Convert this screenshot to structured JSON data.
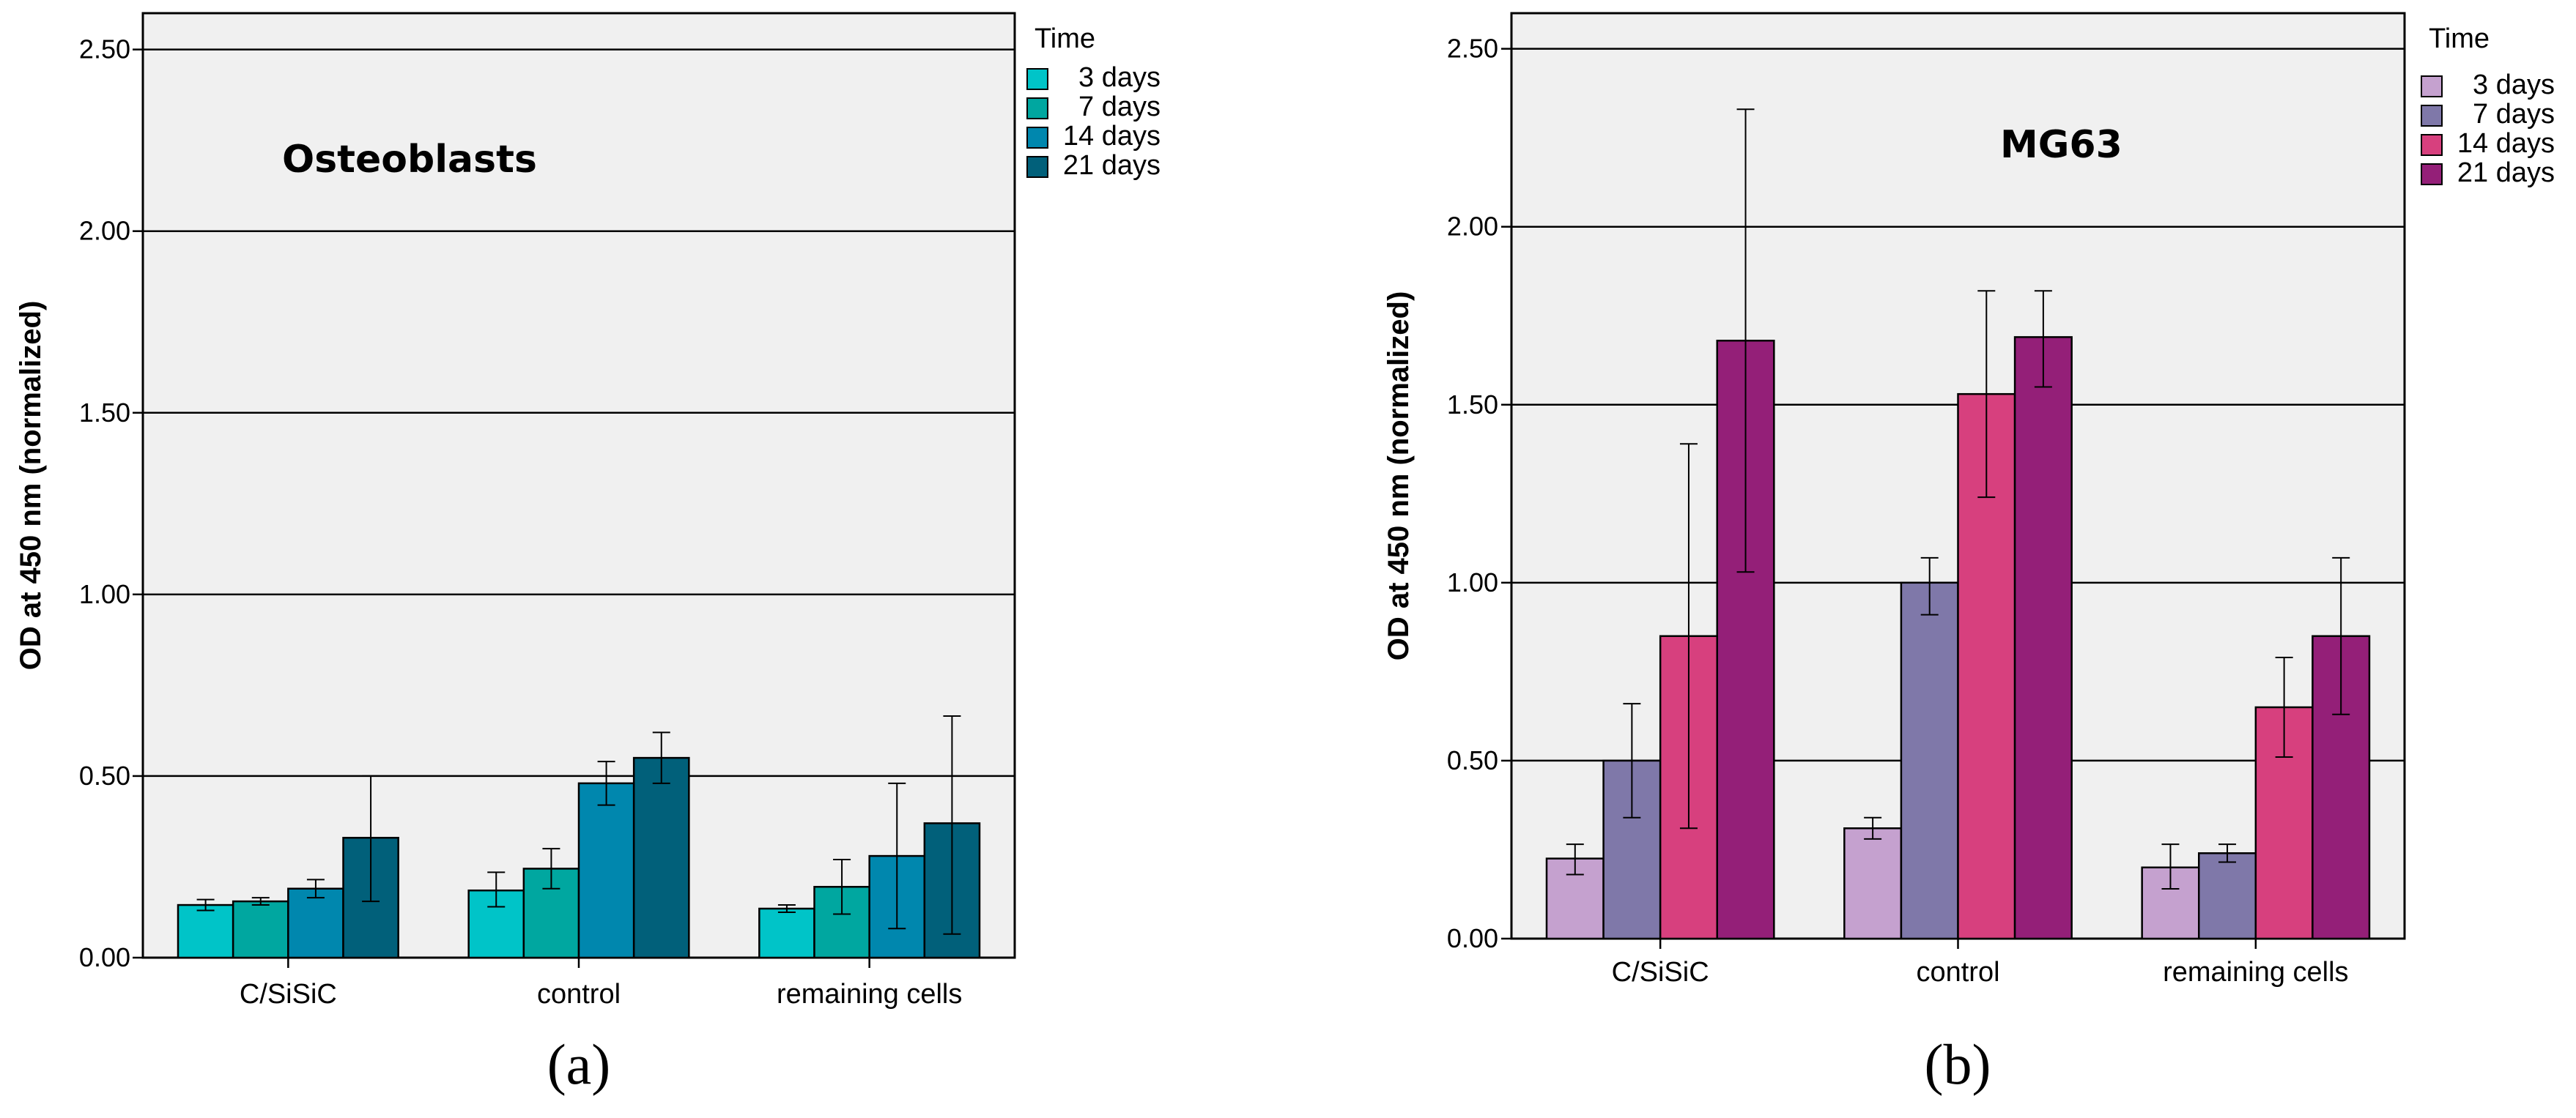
{
  "chart_data": [
    {
      "type": "bar",
      "title": "Osteoblasts",
      "subfigure_label": "(a)",
      "xlabel": "",
      "ylabel": "OD at 450 nm (normalized)",
      "ylim": [
        0,
        2.6
      ],
      "yticks": [
        0.0,
        0.5,
        1.0,
        1.5,
        2.0,
        2.5
      ],
      "ytick_labels": [
        "0.00",
        "0.50",
        "1.00",
        "1.50",
        "2.00",
        "2.50"
      ],
      "grid": true,
      "legend": {
        "title": "Time",
        "position": "right-outside-top"
      },
      "categories": [
        "C/SiSiC",
        "control",
        "remaining cells"
      ],
      "series": [
        {
          "name": "3 days",
          "color": "#00C4C8",
          "values": [
            0.145,
            0.185,
            0.135
          ],
          "err_low": [
            0.13,
            0.14,
            0.125
          ],
          "err_high": [
            0.16,
            0.235,
            0.145
          ]
        },
        {
          "name": "7 days",
          "color": "#00A7A0",
          "values": [
            0.155,
            0.245,
            0.195
          ],
          "err_low": [
            0.145,
            0.19,
            0.12
          ],
          "err_high": [
            0.165,
            0.3,
            0.27
          ]
        },
        {
          "name": "14 days",
          "color": "#0087AE",
          "values": [
            0.19,
            0.48,
            0.28
          ],
          "err_low": [
            0.165,
            0.42,
            0.08
          ],
          "err_high": [
            0.215,
            0.54,
            0.48
          ]
        },
        {
          "name": "21 days",
          "color": "#01607A",
          "values": [
            0.33,
            0.55,
            0.37
          ],
          "err_low": [
            0.155,
            0.48,
            0.065
          ],
          "err_high": [
            0.5,
            0.62,
            0.665
          ]
        }
      ]
    },
    {
      "type": "bar",
      "title": "MG63",
      "subfigure_label": "(b)",
      "xlabel": "",
      "ylabel": "OD at 450 nm (normalized)",
      "ylim": [
        0,
        2.6
      ],
      "yticks": [
        0.0,
        0.5,
        1.0,
        1.5,
        2.0,
        2.5
      ],
      "ytick_labels": [
        "0.00",
        "0.50",
        "1.00",
        "1.50",
        "2.00",
        "2.50"
      ],
      "grid": true,
      "legend": {
        "title": "Time",
        "position": "right-outside-top"
      },
      "categories": [
        "C/SiSiC",
        "control",
        "remaining cells"
      ],
      "series": [
        {
          "name": "3 days",
          "color": "#C5A1CF",
          "values": [
            0.225,
            0.31,
            0.2
          ],
          "err_low": [
            0.18,
            0.28,
            0.14
          ],
          "err_high": [
            0.265,
            0.34,
            0.265
          ]
        },
        {
          "name": "7 days",
          "color": "#7F78A9",
          "values": [
            0.5,
            1.0,
            0.24
          ],
          "err_low": [
            0.34,
            0.91,
            0.215
          ],
          "err_high": [
            0.66,
            1.07,
            0.265
          ]
        },
        {
          "name": "14 days",
          "color": "#D7407E",
          "values": [
            0.85,
            1.53,
            0.65
          ],
          "err_low": [
            0.31,
            1.24,
            0.51
          ],
          "err_high": [
            1.39,
            1.82,
            0.79
          ]
        },
        {
          "name": "21 days",
          "color": "#941F78",
          "values": [
            1.68,
            1.69,
            0.85
          ],
          "err_low": [
            1.03,
            1.55,
            0.63
          ],
          "err_high": [
            2.33,
            1.82,
            1.07
          ]
        }
      ]
    }
  ]
}
